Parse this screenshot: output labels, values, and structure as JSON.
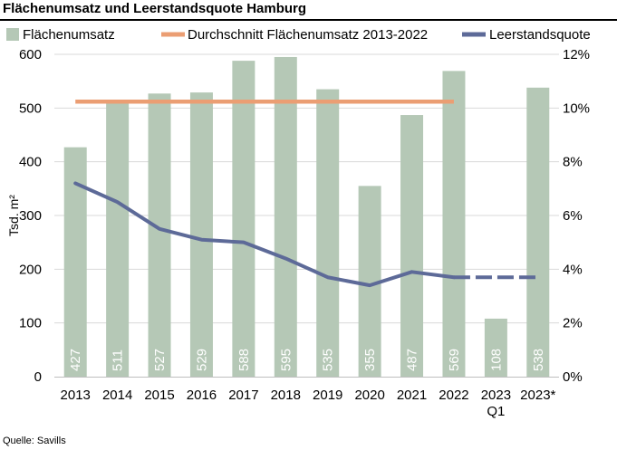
{
  "title": "Flächenumsatz und Leerstandsquote Hamburg",
  "source": "Quelle: Savills",
  "colors": {
    "bar": "#b5c8b6",
    "average_line": "#eb9e73",
    "vacancy_line": "#5d6a98",
    "gridline": "#d9d9d9"
  },
  "chart_data": {
    "type": "bar",
    "categories": [
      "2013",
      "2014",
      "2015",
      "2016",
      "2017",
      "2018",
      "2019",
      "2020",
      "2021",
      "2022",
      "2023\nQ1",
      "2023*"
    ],
    "series": [
      {
        "name": "Flächenumsatz",
        "type": "bar",
        "axis": "left",
        "values": [
          427,
          511,
          527,
          529,
          588,
          595,
          535,
          355,
          487,
          569,
          108,
          538
        ],
        "labels": [
          "427",
          "511",
          "527",
          "529",
          "588",
          "595",
          "535",
          "355",
          "487",
          "569",
          "108",
          "538"
        ]
      },
      {
        "name": "Durchschnitt Flächenumsatz 2013-2022",
        "type": "line",
        "axis": "left",
        "values": [
          512,
          512,
          512,
          512,
          512,
          512,
          512,
          512,
          512,
          512,
          null,
          null
        ]
      },
      {
        "name": "Leerstandsquote",
        "type": "line",
        "axis": "right",
        "values": [
          7.2,
          6.5,
          5.5,
          5.1,
          5.0,
          4.4,
          3.7,
          3.4,
          3.9,
          3.7,
          3.7,
          3.7
        ],
        "dashed_from_index": 10
      }
    ],
    "ylabel": "Tsd. m²",
    "ylim": [
      0,
      600
    ],
    "yticks": [
      "0",
      "100",
      "200",
      "300",
      "400",
      "500",
      "600"
    ],
    "y2lim": [
      0,
      12
    ],
    "y2ticks": [
      "0%",
      "2%",
      "4%",
      "6%",
      "8%",
      "10%",
      "12%"
    ],
    "grid": true,
    "legend": "top"
  }
}
